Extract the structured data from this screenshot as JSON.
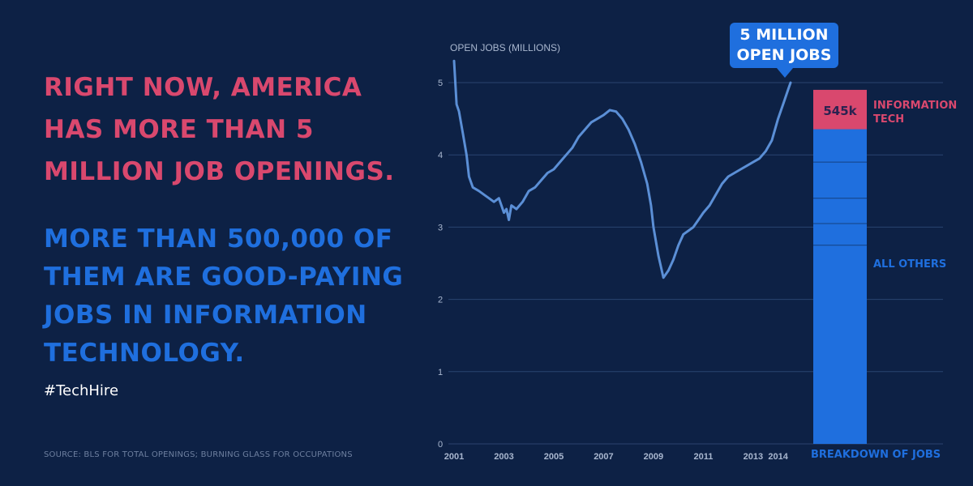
{
  "headline": {
    "line1": "RIGHT NOW, AMERICA HAS MORE THAN 5 MILLION JOB OPENINGS.",
    "line2": "MORE THAN 500,000 OF THEM ARE GOOD-PAYING JOBS IN INFORMATION TECHNOLOGY."
  },
  "hashtag": "#TechHire",
  "source": "SOURCE: BLS FOR TOTAL OPENINGS; BURNING GLASS FOR OCCUPATIONS",
  "callout": {
    "line1": "5 MILLION",
    "line2": "OPEN JOBS"
  },
  "colors": {
    "background": "#0d2145",
    "pink": "#d9486e",
    "blue": "#1f6fde",
    "line": "#5b8fd6"
  },
  "chart_data": {
    "type": "line",
    "title": "",
    "ylabel": "OPEN JOBS (MILLIONS)",
    "xlabel": "",
    "ylim": [
      0,
      5
    ],
    "yticks": [
      0,
      1,
      2,
      3,
      4,
      5
    ],
    "xlim": [
      2001,
      2014.5
    ],
    "xtick_labels": [
      "2001",
      "2003",
      "2005",
      "2007",
      "2009",
      "2011",
      "2013",
      "2014"
    ],
    "xtick_positions": [
      2001,
      2003,
      2005,
      2007,
      2009,
      2011,
      2013,
      2014
    ],
    "series": [
      {
        "name": "Open jobs",
        "x": [
          2001.0,
          2001.1,
          2001.2,
          2001.35,
          2001.5,
          2001.6,
          2001.75,
          2002.0,
          2002.2,
          2002.4,
          2002.6,
          2002.8,
          2002.9,
          2003.0,
          2003.1,
          2003.2,
          2003.3,
          2003.5,
          2003.75,
          2004.0,
          2004.25,
          2004.5,
          2004.75,
          2005.0,
          2005.25,
          2005.5,
          2005.75,
          2006.0,
          2006.25,
          2006.5,
          2006.75,
          2007.0,
          2007.25,
          2007.5,
          2007.75,
          2008.0,
          2008.25,
          2008.5,
          2008.75,
          2008.9,
          2009.0,
          2009.2,
          2009.4,
          2009.6,
          2009.8,
          2010.0,
          2010.2,
          2010.4,
          2010.6,
          2010.8,
          2011.0,
          2011.25,
          2011.5,
          2011.75,
          2012.0,
          2012.25,
          2012.5,
          2012.75,
          2013.0,
          2013.25,
          2013.5,
          2013.75,
          2014.0,
          2014.2,
          2014.4,
          2014.5
        ],
        "values": [
          5.3,
          4.7,
          4.6,
          4.3,
          4.0,
          3.7,
          3.55,
          3.5,
          3.45,
          3.4,
          3.35,
          3.4,
          3.3,
          3.2,
          3.25,
          3.1,
          3.3,
          3.25,
          3.35,
          3.5,
          3.55,
          3.65,
          3.75,
          3.8,
          3.9,
          4.0,
          4.1,
          4.25,
          4.35,
          4.45,
          4.5,
          4.55,
          4.62,
          4.6,
          4.5,
          4.35,
          4.15,
          3.9,
          3.6,
          3.3,
          3.0,
          2.6,
          2.3,
          2.4,
          2.55,
          2.75,
          2.9,
          2.95,
          3.0,
          3.1,
          3.2,
          3.3,
          3.45,
          3.6,
          3.7,
          3.75,
          3.8,
          3.85,
          3.9,
          3.95,
          4.05,
          4.2,
          4.5,
          4.7,
          4.9,
          5.0
        ]
      }
    ],
    "breakdown": {
      "label": "BREAKDOWN OF JOBS",
      "segments": [
        {
          "name": "INFORMATION TECH",
          "value": 0.545,
          "value_label": "545k"
        },
        {
          "name": "ALL OTHERS",
          "value": 4.455
        }
      ]
    }
  }
}
